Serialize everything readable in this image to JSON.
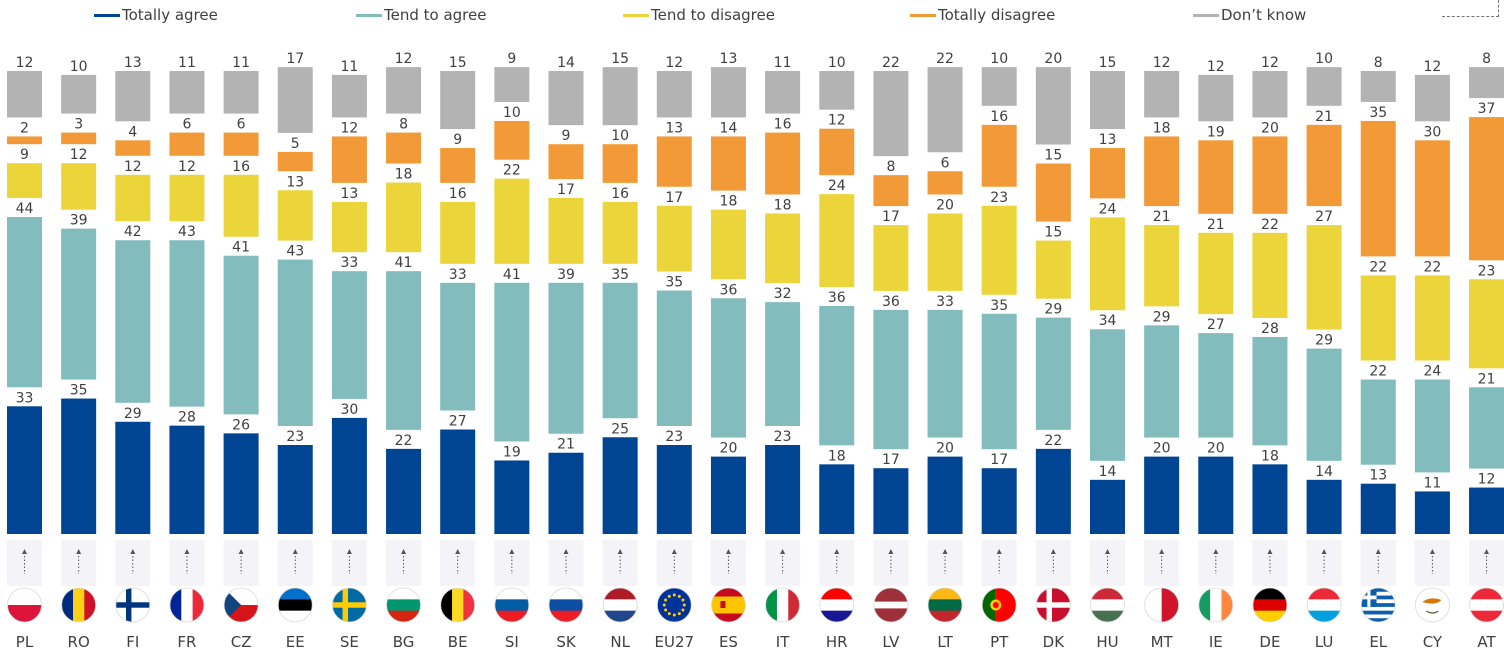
{
  "chart_data": {
    "type": "bar",
    "stacked": true,
    "categories": [
      "PL",
      "RO",
      "FI",
      "FR",
      "CZ",
      "EE",
      "SE",
      "BG",
      "BE",
      "SI",
      "SK",
      "NL",
      "EU27",
      "ES",
      "IT",
      "HR",
      "LV",
      "LT",
      "PT",
      "DK",
      "HU",
      "MT",
      "IE",
      "DE",
      "LU",
      "EL",
      "CY",
      "AT"
    ],
    "series": [
      {
        "name": "Totally agree",
        "color": "#004494",
        "values": [
          33,
          35,
          29,
          28,
          26,
          23,
          30,
          22,
          27,
          19,
          21,
          25,
          23,
          20,
          23,
          18,
          17,
          20,
          17,
          22,
          14,
          20,
          20,
          18,
          14,
          13,
          11,
          12
        ]
      },
      {
        "name": "Tend to agree",
        "color": "#82BCBC",
        "values": [
          44,
          39,
          42,
          43,
          41,
          43,
          33,
          41,
          33,
          41,
          39,
          35,
          35,
          36,
          32,
          36,
          36,
          33,
          35,
          29,
          34,
          29,
          27,
          28,
          29,
          22,
          24,
          21
        ]
      },
      {
        "name": "Tend to disagree",
        "color": "#EBD53A",
        "values": [
          9,
          12,
          12,
          12,
          16,
          13,
          13,
          18,
          16,
          22,
          17,
          16,
          17,
          18,
          18,
          24,
          17,
          20,
          23,
          15,
          24,
          21,
          21,
          22,
          27,
          22,
          22,
          23
        ]
      },
      {
        "name": "Totally disagree",
        "color": "#F39A38",
        "values": [
          2,
          3,
          4,
          6,
          6,
          5,
          12,
          8,
          9,
          10,
          9,
          10,
          13,
          14,
          16,
          12,
          8,
          6,
          16,
          15,
          13,
          18,
          19,
          20,
          21,
          35,
          30,
          37
        ]
      },
      {
        "name": "Don’t know",
        "color": "#B3B3B3",
        "values": [
          12,
          10,
          13,
          11,
          11,
          17,
          11,
          12,
          15,
          9,
          14,
          15,
          12,
          13,
          11,
          10,
          22,
          22,
          10,
          20,
          15,
          12,
          12,
          12,
          10,
          8,
          12,
          8
        ]
      }
    ],
    "flags": [
      {
        "code": "PL",
        "colors": [
          "#ffffff",
          "#dc143c"
        ],
        "layout": "h"
      },
      {
        "code": "RO",
        "colors": [
          "#002b7f",
          "#fcd116",
          "#ce1126"
        ],
        "layout": "v"
      },
      {
        "code": "FI",
        "colors": [
          "#ffffff",
          "#003580"
        ],
        "layout": "nordic"
      },
      {
        "code": "FR",
        "colors": [
          "#002395",
          "#ffffff",
          "#ed2939"
        ],
        "layout": "v"
      },
      {
        "code": "CZ",
        "colors": [
          "#ffffff",
          "#d7141a",
          "#11457e"
        ],
        "layout": "cz"
      },
      {
        "code": "EE",
        "colors": [
          "#0072ce",
          "#000000",
          "#ffffff"
        ],
        "layout": "h"
      },
      {
        "code": "SE",
        "colors": [
          "#006aa7",
          "#fecc00"
        ],
        "layout": "nordic"
      },
      {
        "code": "BG",
        "colors": [
          "#ffffff",
          "#00966e",
          "#d62612"
        ],
        "layout": "h"
      },
      {
        "code": "BE",
        "colors": [
          "#000000",
          "#fdda24",
          "#ef3340"
        ],
        "layout": "v"
      },
      {
        "code": "SI",
        "colors": [
          "#ffffff",
          "#005da4",
          "#ed1c24"
        ],
        "layout": "h"
      },
      {
        "code": "SK",
        "colors": [
          "#ffffff",
          "#0b4ea2",
          "#ee1c25"
        ],
        "layout": "h"
      },
      {
        "code": "NL",
        "colors": [
          "#ae1c28",
          "#ffffff",
          "#21468b"
        ],
        "layout": "h"
      },
      {
        "code": "EU27",
        "colors": [
          "#003399",
          "#ffcc00"
        ],
        "layout": "eu"
      },
      {
        "code": "ES",
        "colors": [
          "#c60b1e",
          "#ffc400",
          "#c60b1e"
        ],
        "layout": "es"
      },
      {
        "code": "IT",
        "colors": [
          "#009246",
          "#ffffff",
          "#ce2b37"
        ],
        "layout": "v"
      },
      {
        "code": "HR",
        "colors": [
          "#ff0000",
          "#ffffff",
          "#171796"
        ],
        "layout": "h"
      },
      {
        "code": "LV",
        "colors": [
          "#9e3039",
          "#ffffff",
          "#9e3039"
        ],
        "layout": "lv"
      },
      {
        "code": "LT",
        "colors": [
          "#fdb913",
          "#006a44",
          "#c1272d"
        ],
        "layout": "h"
      },
      {
        "code": "PT",
        "colors": [
          "#006600",
          "#ff0000"
        ],
        "layout": "pt"
      },
      {
        "code": "DK",
        "colors": [
          "#c8102e",
          "#ffffff"
        ],
        "layout": "nordic"
      },
      {
        "code": "HU",
        "colors": [
          "#ce2939",
          "#ffffff",
          "#477050"
        ],
        "layout": "h"
      },
      {
        "code": "MT",
        "colors": [
          "#ffffff",
          "#cf142b"
        ],
        "layout": "v"
      },
      {
        "code": "IE",
        "colors": [
          "#169b62",
          "#ffffff",
          "#ff883e"
        ],
        "layout": "v"
      },
      {
        "code": "DE",
        "colors": [
          "#000000",
          "#dd0000",
          "#ffce00"
        ],
        "layout": "h"
      },
      {
        "code": "LU",
        "colors": [
          "#ed2939",
          "#ffffff",
          "#00a1de"
        ],
        "layout": "h"
      },
      {
        "code": "EL",
        "colors": [
          "#0d5eaf",
          "#ffffff"
        ],
        "layout": "gr"
      },
      {
        "code": "CY",
        "colors": [
          "#ffffff",
          "#d57800"
        ],
        "layout": "cy"
      },
      {
        "code": "AT",
        "colors": [
          "#ed2939",
          "#ffffff",
          "#ed2939"
        ],
        "layout": "h"
      }
    ],
    "ylim": [
      0,
      100
    ],
    "xlabel": "",
    "ylabel": "",
    "legend": "top",
    "grid": false
  }
}
